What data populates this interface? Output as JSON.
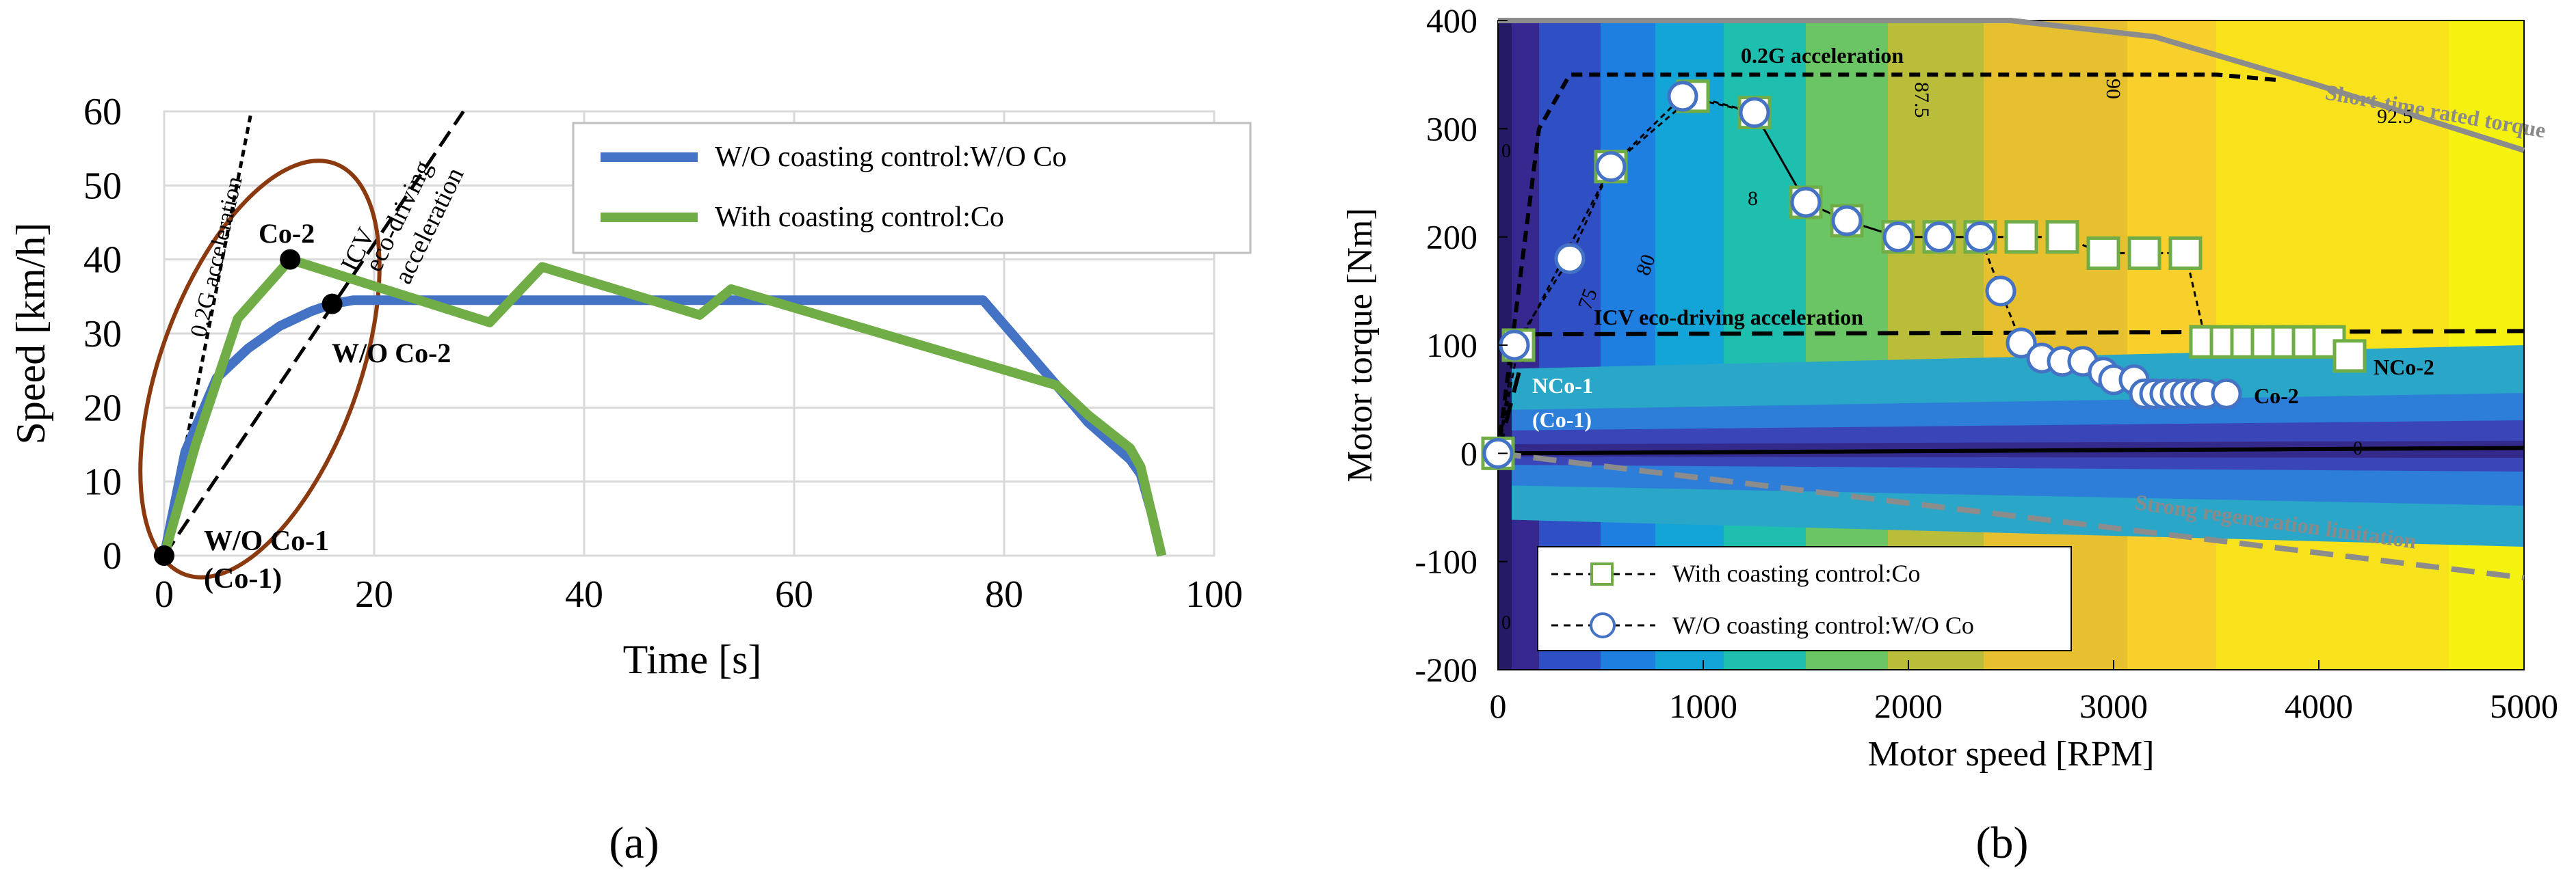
{
  "panel_a": {
    "label": "(a)",
    "xlabel": "Time  [s]",
    "ylabel": "Speed  [km/h]",
    "legend": [
      "W/O coasting control:W/O Co",
      "With coasting control:Co"
    ],
    "annotations": {
      "accel_02g": "0.2G acceleration",
      "icv_line1": "ICV",
      "icv_line2": "eco-driving",
      "icv_line3": "acceleration",
      "co2": "Co-2",
      "woco2": "W/O Co-2",
      "woco1": "W/O Co-1",
      "co1": "(Co-1)"
    }
  },
  "panel_b": {
    "label": "(b)",
    "xlabel": "Motor speed  [RPM]",
    "ylabel": "Motor  torque  [Nm]",
    "legend": [
      "With coasting control:Co",
      "W/O coasting control:W/O Co"
    ],
    "annotations": {
      "accel_02g": "0.2G acceleration",
      "icv": "ICV eco-driving acceleration",
      "short_time": "Short-time rated torque",
      "strong_regen": "Strong regeneration limitation",
      "nco1": "NCo-1",
      "co1": "(Co-1)",
      "nco2": "NCo-2",
      "co2": "Co-2"
    },
    "contour_labels": [
      "75",
      "80",
      "8",
      "87.5",
      "90",
      "92.5",
      "0",
      "0",
      "0"
    ]
  },
  "colors": {
    "blue_series": "#4472C4",
    "green_series": "#70AD47",
    "ellipse": "#8B3A0F",
    "grid": "#D9D9D9"
  },
  "chart_data": [
    {
      "type": "line",
      "title": "",
      "xlabel": "Time  [s]",
      "ylabel": "Speed  [km/h]",
      "xlim": [
        0,
        100
      ],
      "ylim": [
        0,
        60
      ],
      "xticks": [
        0,
        20,
        40,
        60,
        80,
        100
      ],
      "yticks": [
        0,
        10,
        20,
        30,
        40,
        50,
        60
      ],
      "grid": true,
      "legend_position": "top-right",
      "series": [
        {
          "name": "W/O coasting control:W/O Co",
          "x": [
            0,
            2,
            5,
            8,
            11,
            14,
            16,
            18,
            78,
            85,
            88,
            92,
            93,
            94,
            95
          ],
          "y": [
            0,
            14,
            24,
            28,
            31,
            33,
            34,
            34.5,
            34.5,
            23,
            18,
            13,
            11,
            6,
            0
          ]
        },
        {
          "name": "With coasting control:Co",
          "x": [
            0,
            3,
            7,
            12,
            31,
            36,
            51,
            54,
            85,
            88,
            92,
            93,
            94,
            95
          ],
          "y": [
            0,
            15,
            32,
            40,
            31.5,
            39,
            32.5,
            36,
            23,
            19,
            14.5,
            12,
            6,
            0
          ]
        },
        {
          "name": "0.2G acceleration",
          "x": [
            0,
            8.3
          ],
          "y": [
            0,
            60
          ]
        },
        {
          "name": "ICV eco-driving acceleration",
          "x": [
            0,
            28.5
          ],
          "y": [
            0,
            60
          ]
        }
      ],
      "points": [
        {
          "label": "W/O Co-1 (Co-1)",
          "x": 0,
          "y": 0
        },
        {
          "label": "Co-2",
          "x": 12,
          "y": 40
        },
        {
          "label": "W/O Co-2",
          "x": 16,
          "y": 34
        }
      ]
    },
    {
      "type": "scatter",
      "title": "",
      "xlabel": "Motor speed  [RPM]",
      "ylabel": "Motor  torque  [Nm]",
      "xlim": [
        0,
        5000
      ],
      "ylim": [
        -200,
        400
      ],
      "xticks": [
        0,
        1000,
        2000,
        3000,
        4000,
        5000
      ],
      "yticks": [
        -200,
        -100,
        0,
        100,
        200,
        300,
        400
      ],
      "legend_position": "bottom-left",
      "series": [
        {
          "name": "With coasting control:Co",
          "x": [
            0,
            100,
            550,
            950,
            1250,
            1500,
            1700,
            1950,
            2150,
            2350,
            2550,
            2750,
            2950,
            3150,
            3350,
            3450,
            3550,
            3650,
            3750,
            3850,
            3950,
            4050,
            4150
          ],
          "y": [
            0,
            100,
            265,
            330,
            315,
            232,
            215,
            200,
            200,
            200,
            200,
            200,
            185,
            185,
            185,
            103,
            103,
            103,
            103,
            103,
            103,
            103,
            90
          ]
        },
        {
          "name": "W/O coasting control:W/O Co",
          "x": [
            0,
            80,
            350,
            550,
            900,
            1250,
            1500,
            1700,
            1950,
            2150,
            2350,
            2450,
            2550,
            2650,
            2750,
            2850,
            2950,
            3000,
            3100,
            3150,
            3200,
            3250,
            3300,
            3350,
            3400,
            3450,
            3550
          ],
          "y": [
            0,
            100,
            180,
            265,
            330,
            315,
            232,
            215,
            200,
            200,
            200,
            150,
            102,
            88,
            85,
            85,
            75,
            68,
            68,
            55,
            55,
            55,
            55,
            55,
            55,
            55,
            55
          ]
        },
        {
          "name": "0.2G acceleration",
          "x": [
            0,
            200,
            350,
            3500,
            3800
          ],
          "y": [
            0,
            300,
            350,
            350,
            345
          ]
        },
        {
          "name": "ICV eco-driving acceleration",
          "x": [
            0,
            150,
            5000
          ],
          "y": [
            0,
            110,
            113
          ]
        },
        {
          "name": "Short-time rated torque",
          "x": [
            0,
            2500,
            3200,
            4000,
            5000
          ],
          "y": [
            400,
            400,
            385,
            340,
            280
          ]
        },
        {
          "name": "Strong regeneration limitation",
          "x": [
            0,
            5000
          ],
          "y": [
            0,
            -115
          ]
        }
      ]
    }
  ]
}
